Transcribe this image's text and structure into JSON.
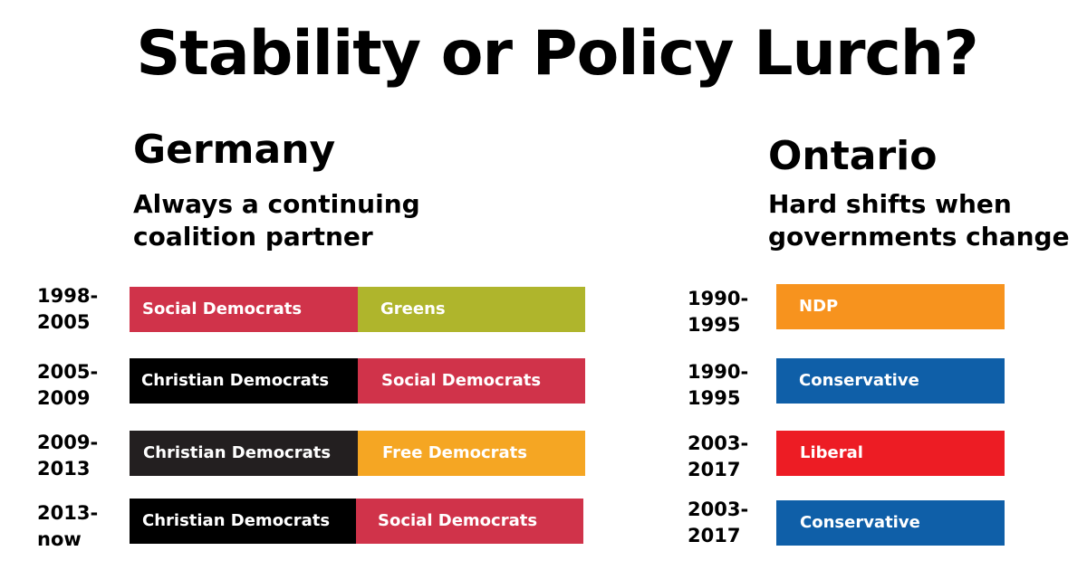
{
  "title": "Stability or Policy Lurch?",
  "germany": {
    "heading": "Germany",
    "subtitle_line1": "Always a continuing",
    "subtitle_line2": "coalition partner",
    "rows": [
      {
        "year_start": "1998-",
        "year_end": "2005",
        "parties": [
          {
            "name": "Social Democrats",
            "color": "#D0334A"
          },
          {
            "name": "Greens",
            "color": "#AFB52C"
          }
        ]
      },
      {
        "year_start": "2005-",
        "year_end": "2009",
        "parties": [
          {
            "name": "Christian Democrats",
            "color": "#000000"
          },
          {
            "name": "Social Democrats",
            "color": "#D0334A"
          }
        ]
      },
      {
        "year_start": "2009-",
        "year_end": "2013",
        "parties": [
          {
            "name": "Christian Democrats",
            "color": "#231F20"
          },
          {
            "name": "Free Democrats",
            "color": "#F5A623"
          }
        ]
      },
      {
        "year_start": "2013-",
        "year_end": "now",
        "parties": [
          {
            "name": "Christian Democrats",
            "color": "#000000"
          },
          {
            "name": "Social Democrats",
            "color": "#D0334A"
          }
        ]
      }
    ]
  },
  "ontario": {
    "heading": "Ontario",
    "subtitle_line1": "Hard shifts when",
    "subtitle_line2": "governments change",
    "rows": [
      {
        "year_start": "1990-",
        "year_end": "1995",
        "party": "NDP",
        "color": "#F7931E"
      },
      {
        "year_start": "1990-",
        "year_end": "1995",
        "party": "Conservative",
        "color": "#0F5FA8"
      },
      {
        "year_start": "2003-",
        "year_end": "2017",
        "party": "Liberal",
        "color": "#ED1C24"
      },
      {
        "year_start": "2003-",
        "year_end": "2017",
        "party": "Conservative",
        "color": "#0F5FA8"
      }
    ]
  }
}
